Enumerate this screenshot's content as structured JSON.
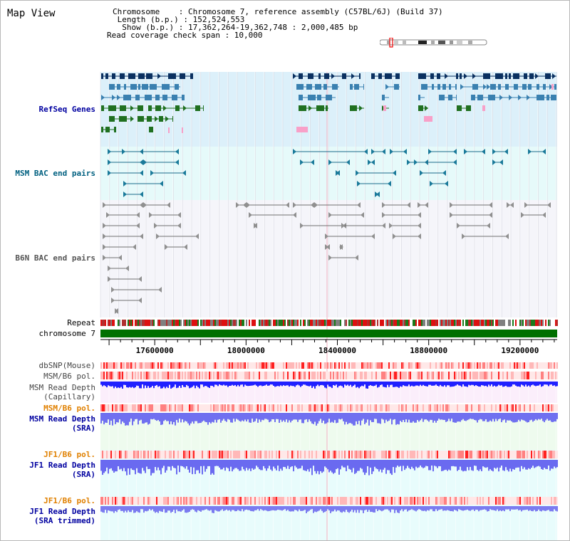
{
  "header": {
    "title": "Map View",
    "info_lines": [
      "Chromosome    : Chromosome 7, reference assembly (C57BL/6J) (Build 37)",
      " Length (b.p.) : 152,524,553",
      "  Show (b.p.) : 17,362,264-19,362,748 : 2,000,485 bp",
      "Read coverage check span : 10,000"
    ]
  },
  "tracks": {
    "refseq_label": "RefSeq Genes",
    "msm_bac_label": "MSM BAC end pairs",
    "b6n_bac_label": "B6N BAC end pairs",
    "repeat_label": "Repeat",
    "chromosome_label": "chromosome 7",
    "dbsnp_label": "dbSNP(Mouse)",
    "msm_b6_pol_label": "MSM/B6 pol.",
    "msm_depth_cap_label": "MSM Read Depth",
    "msm_depth_cap_sub": "(Capillary)",
    "msm_b6_pol2_label": "MSM/B6 pol.",
    "msm_depth_sra_label": "MSM Read Depth",
    "msm_depth_sra_sub": "(SRA)",
    "jf1_pol_label": "JF1/B6 pol.",
    "jf1_depth_label": "JF1 Read Depth",
    "jf1_depth_sub": "(SRA)",
    "jf1_pol2_label": "JF1/B6 pol.",
    "jf1_depth_trim_label": "JF1 Read Depth",
    "jf1_depth_trim_sub": "(SRA trimmed)"
  },
  "axis": {
    "ticks": [
      "17600000",
      "18000000",
      "18400000",
      "18800000",
      "19200000"
    ],
    "tick_values": [
      17600000,
      18000000,
      18400000,
      18800000,
      19200000
    ],
    "range": [
      17362264,
      19362748
    ]
  },
  "colors": {
    "refseq_bg": "#dcf0fa",
    "msm_bac_bg": "#e6fafa",
    "b6n_bac_bg": "#f5f5fa",
    "msm_cap_bg": "#fbeefb",
    "msm_sra_bg": "#eefbee",
    "jf1_bg": "#e8fcfc",
    "label_blue": "#0000a0",
    "label_teal": "#006080",
    "label_orange": "#e08000",
    "chromosome_green": "#007000",
    "depth_blue": "#0000ff",
    "depth_lightblue": "#7b7bf0"
  }
}
